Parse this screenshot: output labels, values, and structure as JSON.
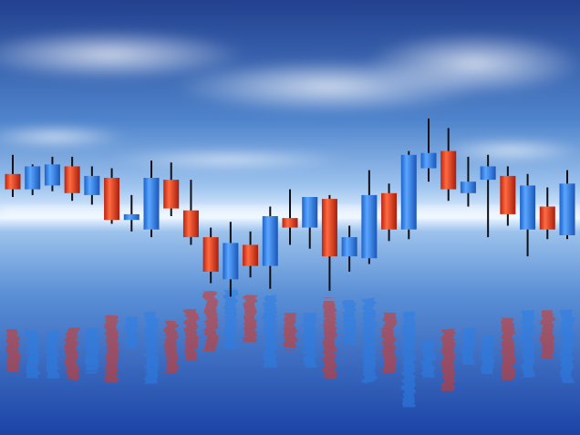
{
  "scene": {
    "description_text": "",
    "colors": {
      "sky_top": "#233f8f",
      "sky_mid": "#4f86cf",
      "horizon": "#e9f3ff",
      "sea_top": "#6aa0db",
      "sea_bottom": "#1c44a6",
      "bull": "#2b7fe8",
      "bull_light": "#6fb1ff",
      "bear": "#e0341c",
      "bear_light": "#ff7a55",
      "wick": "#101018"
    },
    "candles": [
      {
        "dir": "down",
        "high": 0.62,
        "open": 0.52,
        "close": 0.44,
        "low": 0.4
      },
      {
        "dir": "up",
        "high": 0.57,
        "open": 0.44,
        "close": 0.56,
        "low": 0.41
      },
      {
        "dir": "up",
        "high": 0.61,
        "open": 0.46,
        "close": 0.57,
        "low": 0.43
      },
      {
        "dir": "down",
        "high": 0.61,
        "open": 0.56,
        "close": 0.42,
        "low": 0.38
      },
      {
        "dir": "up",
        "high": 0.56,
        "open": 0.41,
        "close": 0.51,
        "low": 0.36
      },
      {
        "dir": "down",
        "high": 0.55,
        "open": 0.5,
        "close": 0.28,
        "low": 0.26
      },
      {
        "dir": "up",
        "high": 0.41,
        "open": 0.28,
        "close": 0.31,
        "low": 0.22
      },
      {
        "dir": "up",
        "high": 0.59,
        "open": 0.23,
        "close": 0.5,
        "low": 0.19
      },
      {
        "dir": "down",
        "high": 0.58,
        "open": 0.49,
        "close": 0.34,
        "low": 0.3
      },
      {
        "dir": "down",
        "high": 0.49,
        "open": 0.33,
        "close": 0.19,
        "low": 0.15
      },
      {
        "dir": "down",
        "high": 0.24,
        "open": 0.19,
        "close": 0.01,
        "low": -0.05
      },
      {
        "dir": "up",
        "high": 0.27,
        "open": -0.03,
        "close": 0.16,
        "low": -0.12
      },
      {
        "dir": "down",
        "high": 0.22,
        "open": 0.15,
        "close": 0.04,
        "low": -0.02
      },
      {
        "dir": "up",
        "high": 0.35,
        "open": 0.04,
        "close": 0.3,
        "low": -0.08
      },
      {
        "dir": "down",
        "high": 0.44,
        "open": 0.29,
        "close": 0.24,
        "low": 0.15
      },
      {
        "dir": "up",
        "high": 0.4,
        "open": 0.24,
        "close": 0.4,
        "low": 0.13
      },
      {
        "dir": "down",
        "high": 0.41,
        "open": 0.39,
        "close": 0.09,
        "low": -0.09
      },
      {
        "dir": "up",
        "high": 0.25,
        "open": 0.09,
        "close": 0.19,
        "low": 0.01
      },
      {
        "dir": "up",
        "high": 0.54,
        "open": 0.08,
        "close": 0.41,
        "low": 0.05
      },
      {
        "dir": "down",
        "high": 0.47,
        "open": 0.42,
        "close": 0.23,
        "low": 0.17
      },
      {
        "dir": "up",
        "high": 0.64,
        "open": 0.23,
        "close": 0.62,
        "low": 0.18
      },
      {
        "dir": "up",
        "high": 0.81,
        "open": 0.55,
        "close": 0.63,
        "low": 0.48
      },
      {
        "dir": "down",
        "high": 0.76,
        "open": 0.64,
        "close": 0.44,
        "low": 0.38
      },
      {
        "dir": "up",
        "high": 0.61,
        "open": 0.42,
        "close": 0.48,
        "low": 0.35
      },
      {
        "dir": "up",
        "high": 0.62,
        "open": 0.49,
        "close": 0.56,
        "low": 0.19
      },
      {
        "dir": "down",
        "high": 0.56,
        "open": 0.51,
        "close": 0.31,
        "low": 0.25
      },
      {
        "dir": "up",
        "high": 0.52,
        "open": 0.23,
        "close": 0.46,
        "low": 0.09
      },
      {
        "dir": "down",
        "high": 0.45,
        "open": 0.35,
        "close": 0.23,
        "low": 0.18
      },
      {
        "dir": "up",
        "high": 0.54,
        "open": 0.2,
        "close": 0.47,
        "low": 0.18
      }
    ]
  }
}
